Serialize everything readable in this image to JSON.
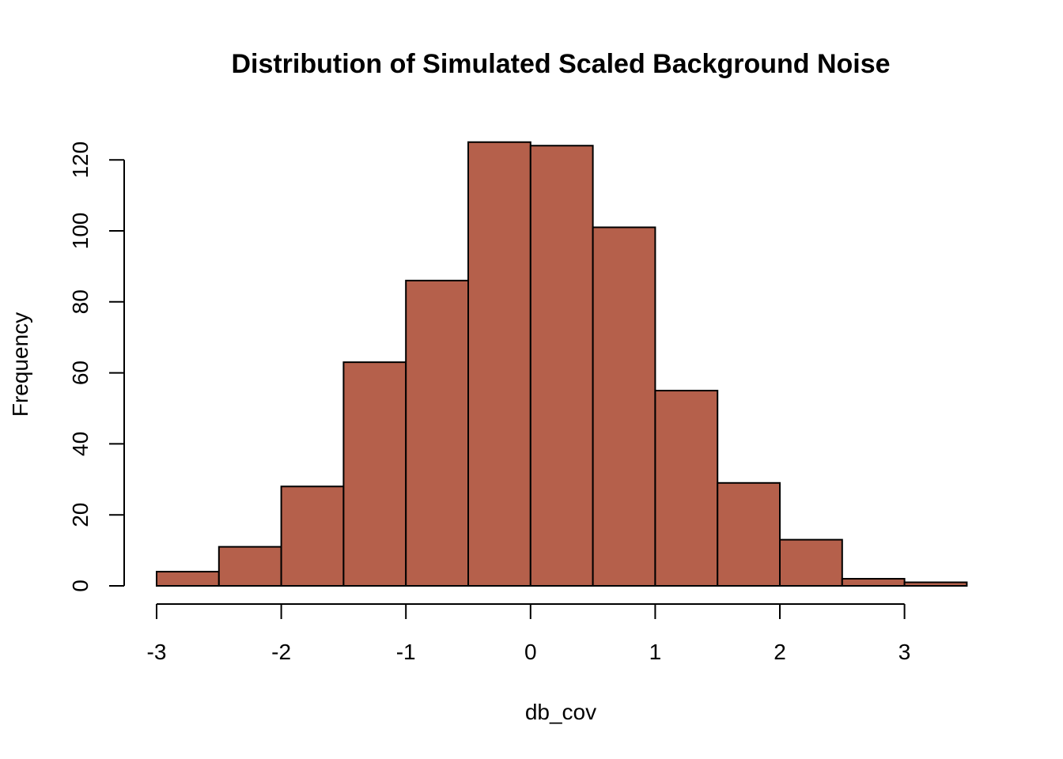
{
  "chart_data": {
    "type": "bar",
    "title": "Distribution of Simulated Scaled Background Noise",
    "xlabel": "db_cov",
    "ylabel": "Frequency",
    "bar_color": "#b5604b",
    "border_color": "#000000",
    "bins": [
      {
        "x0": -3.0,
        "x1": -2.5,
        "count": 4
      },
      {
        "x0": -2.5,
        "x1": -2.0,
        "count": 11
      },
      {
        "x0": -2.0,
        "x1": -1.5,
        "count": 28
      },
      {
        "x0": -1.5,
        "x1": -1.0,
        "count": 63
      },
      {
        "x0": -1.0,
        "x1": -0.5,
        "count": 86
      },
      {
        "x0": -0.5,
        "x1": 0.0,
        "count": 125
      },
      {
        "x0": 0.0,
        "x1": 0.5,
        "count": 124
      },
      {
        "x0": 0.5,
        "x1": 1.0,
        "count": 101
      },
      {
        "x0": 1.0,
        "x1": 1.5,
        "count": 55
      },
      {
        "x0": 1.5,
        "x1": 2.0,
        "count": 29
      },
      {
        "x0": 2.0,
        "x1": 2.5,
        "count": 13
      },
      {
        "x0": 2.5,
        "x1": 3.0,
        "count": 2
      },
      {
        "x0": 3.0,
        "x1": 3.5,
        "count": 1
      }
    ],
    "x_ticks": [
      -3,
      -2,
      -1,
      0,
      1,
      2,
      3
    ],
    "x_tick_labels": [
      "-3",
      "-2",
      "-1",
      "0",
      "1",
      "2",
      "3"
    ],
    "y_ticks": [
      0,
      20,
      40,
      60,
      80,
      100,
      120
    ],
    "y_tick_labels": [
      "0",
      "20",
      "40",
      "60",
      "80",
      "100",
      "120"
    ],
    "xlim": [
      -3,
      3.5
    ],
    "ylim": [
      0,
      125
    ],
    "grid": false,
    "legend": "none"
  }
}
